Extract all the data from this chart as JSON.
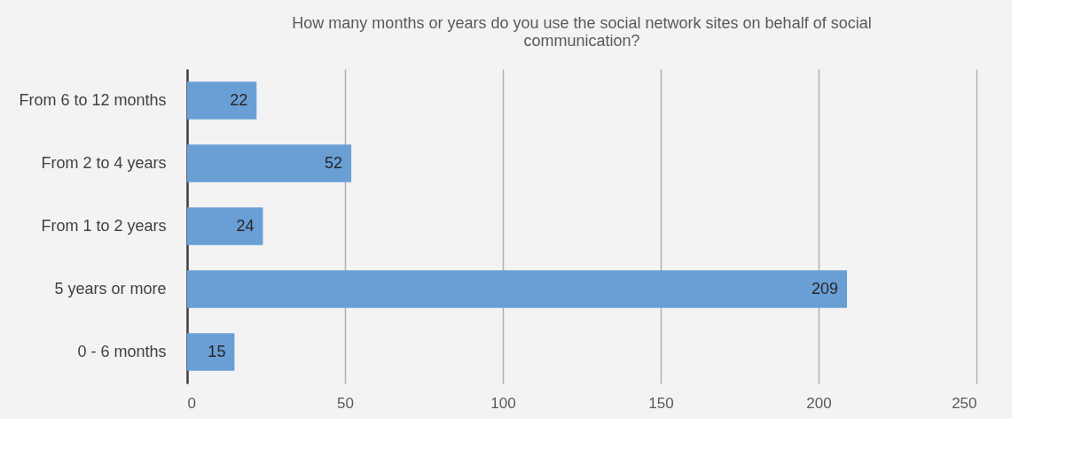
{
  "chart_data": {
    "type": "bar",
    "orientation": "horizontal",
    "title": "How many months or years do you use the social network sites on behalf of social communication?",
    "categories": [
      "From 6 to 12 months",
      "From 2 to 4 years",
      "From 1 to 2 years",
      "5 years or more",
      "0 - 6 months"
    ],
    "values": [
      22,
      52,
      24,
      209,
      15
    ],
    "color": "#6a9fd6",
    "xlim": [
      0,
      250
    ],
    "xticks": [
      0,
      50,
      100,
      150,
      200,
      250
    ],
    "grid": "x",
    "data_labels": true
  }
}
